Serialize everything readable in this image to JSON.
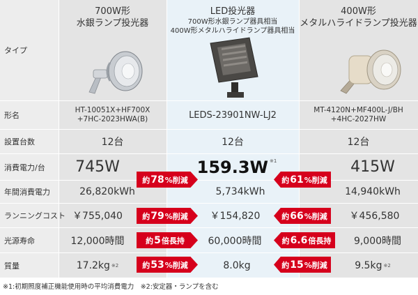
{
  "labels": {
    "type": "タイプ",
    "model": "形名",
    "count": "設置台数",
    "power": "消費電力/台",
    "annual": "年間消費電力",
    "running": "ランニングコスト",
    "life": "光源寿命",
    "mass": "質量"
  },
  "columns": [
    {
      "title_line1": "700W形",
      "title_line2": "水銀ランプ投光器",
      "model_line1": "HT-10051X+HF700X",
      "model_line2": "+7HC-2023HWA(B)",
      "count": "12台",
      "power": "745W",
      "annual": "26,820kWh",
      "running": "￥755,040",
      "life": "12,000時間",
      "mass": "17.2kg",
      "mass_note": "※2"
    },
    {
      "title_line1": "LED投光器",
      "sub_line1": "700W形水銀ランプ器具相当",
      "sub_line2": "400W形メタルハライドランプ器具相当",
      "model_line1": "LEDS-23901NW-LJ2",
      "count": "12台",
      "power": "159.3W",
      "power_note": "※1",
      "annual": "5,734kWh",
      "running": "￥154,820",
      "life": "60,000時間",
      "mass": "8.0kg"
    },
    {
      "title_line1": "400W形",
      "title_line2": "メタルハライドランプ投光器",
      "model_line1": "MT-4120N+MF400L-J/BH",
      "model_line2": "+4HC-2027HW",
      "count": "12台",
      "power": "415W",
      "annual": "14,940kWh",
      "running": "￥456,580",
      "life": "9,000時間",
      "mass": "9.5kg",
      "mass_note": "※2"
    }
  ],
  "badges_left": [
    {
      "pre": "約",
      "num": "78",
      "post": "%削減"
    },
    {
      "pre": "約",
      "num": "79",
      "post": "%削減"
    },
    {
      "pre": "約",
      "num": "5",
      "post": "倍長持"
    },
    {
      "pre": "約",
      "num": "53",
      "post": "%削減"
    }
  ],
  "badges_right": [
    {
      "pre": "約",
      "num": "61",
      "post": "%削減"
    },
    {
      "pre": "約",
      "num": "66",
      "post": "%削減"
    },
    {
      "pre": "約",
      "num": "6.6",
      "post": "倍長持"
    },
    {
      "pre": "約",
      "num": "15",
      "post": "%削減"
    }
  ],
  "footnote": "※1:初期照度補正機能使用時の平均消費電力　※2:安定器・ランプを含む",
  "colors": {
    "badge": "#d6001c",
    "led_column": "#e9f2f8",
    "other_column": "#e4e4e4"
  }
}
